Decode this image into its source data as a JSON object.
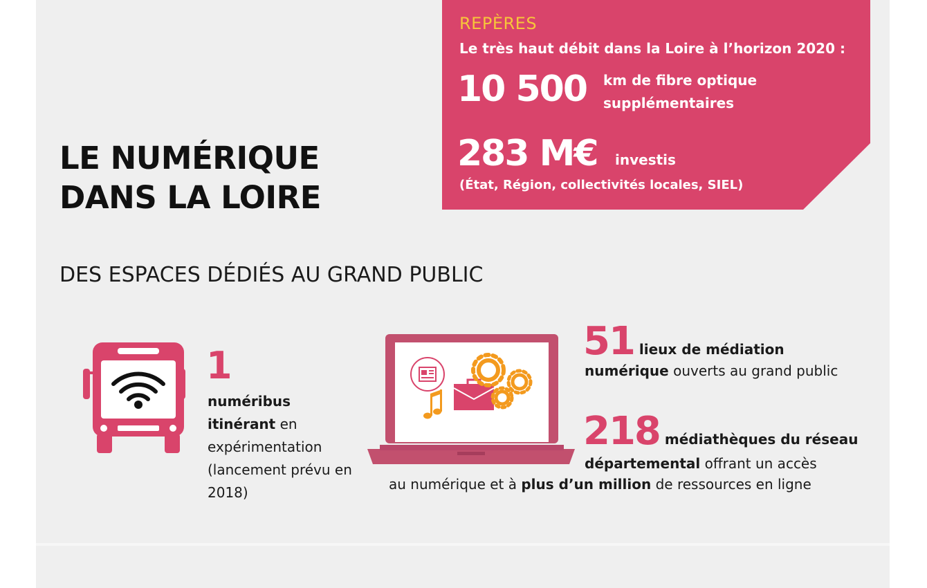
{
  "header": {
    "title_line1": "LE NUMÉRIQUE",
    "title_line2": "DANS LA LOIRE"
  },
  "reperes": {
    "label": "REPÈRES",
    "intro": "Le très haut débit dans la Loire à l’horizon 2020 :",
    "fibre_value": "10 500",
    "fibre_label_line1": "km de fibre optique",
    "fibre_label_line2": "supplémentaires",
    "invest_value": "283 M€",
    "invest_label": "investis",
    "invest_note": "(État, Région, collectivités locales, SIEL)"
  },
  "section": {
    "title": "DES ESPACES DÉDIÉS AU GRAND PUBLIC"
  },
  "numeribus": {
    "value": "1",
    "bold_text": "numéribus itinérant",
    "text": " en expérimentation (lancement prévu en 2018)"
  },
  "mediation": {
    "value": "51",
    "lead": " lieux de médiation",
    "bold_text": "numérique",
    "text": " ouverts au grand public"
  },
  "mediatheques": {
    "value": "218",
    "lead": " médiathèques du réseau",
    "bold_text": "départemental",
    "text": " offrant un accès",
    "line3_pre": "au numérique et à ",
    "line3_bold": "plus d’un million",
    "line3_post": " de ressources en ligne"
  },
  "colors": {
    "accent": "#d9446b",
    "highlight": "#f7c53a",
    "orange": "#f39a1e",
    "background": "#efefef"
  },
  "icons": [
    "bus-icon",
    "wifi-icon",
    "laptop-icon",
    "newspaper-icon",
    "music-note-icon",
    "briefcase-icon",
    "gear-icon"
  ]
}
